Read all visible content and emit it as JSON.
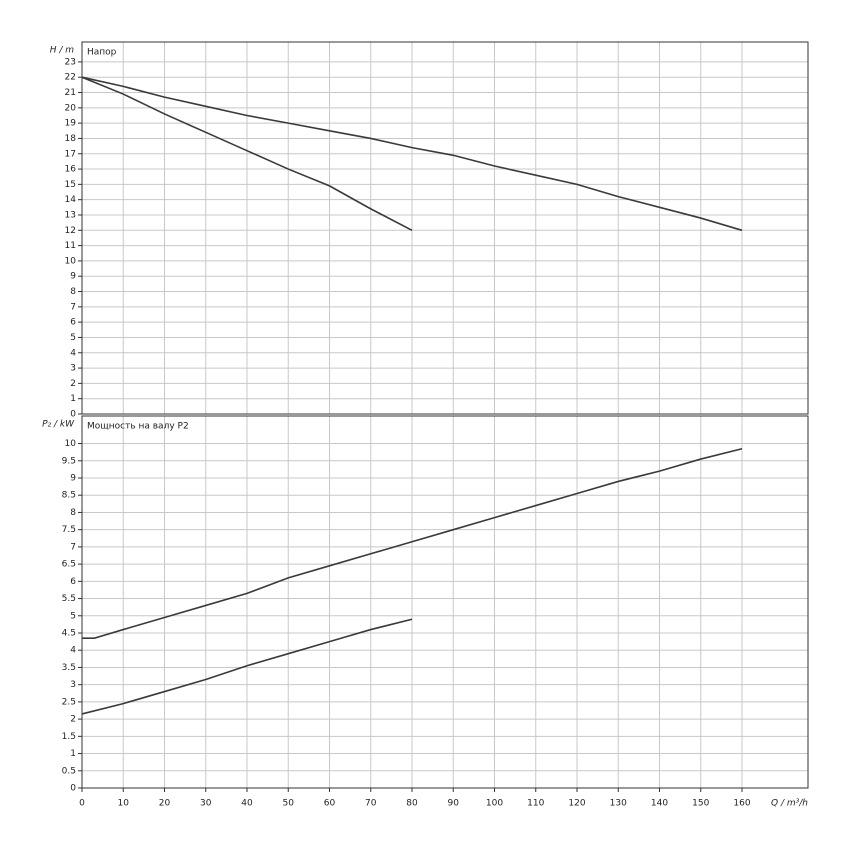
{
  "chart_data": [
    {
      "type": "line",
      "title": "Напор",
      "y_label": "H / m",
      "ylim": [
        0,
        24.3
      ],
      "yticks": [
        0,
        1,
        2,
        3,
        4,
        5,
        6,
        7,
        8,
        9,
        10,
        11,
        12,
        13,
        14,
        15,
        16,
        17,
        18,
        19,
        20,
        21,
        22,
        23
      ],
      "grid": true,
      "series": [
        {
          "color": "#3a3a3a",
          "x": [
            0,
            10,
            20,
            30,
            40,
            50,
            60,
            70,
            80
          ],
          "values": [
            22,
            20.9,
            19.6,
            18.4,
            17.2,
            16.0,
            14.9,
            13.4,
            12.0
          ]
        },
        {
          "color": "#3a3a3a",
          "x": [
            0,
            10,
            20,
            30,
            40,
            50,
            60,
            70,
            80,
            90,
            100,
            110,
            120,
            130,
            140,
            150,
            160
          ],
          "values": [
            22,
            21.4,
            20.7,
            20.1,
            19.5,
            19.0,
            18.5,
            18.0,
            17.4,
            16.9,
            16.2,
            15.6,
            15.0,
            14.2,
            13.5,
            12.8,
            12.0
          ]
        }
      ]
    },
    {
      "type": "line",
      "title": "Мощность на валу P2",
      "y_label": "P₂ / kW",
      "x_label": "Q / m³/h",
      "xlim": [
        0,
        176
      ],
      "xticks": [
        0,
        10,
        20,
        30,
        40,
        50,
        60,
        70,
        80,
        90,
        100,
        110,
        120,
        130,
        140,
        150,
        160
      ],
      "ylim": [
        0,
        10.8
      ],
      "yticks": [
        0,
        0.5,
        1,
        1.5,
        2,
        2.5,
        3,
        3.5,
        4,
        4.5,
        5,
        5.5,
        6,
        6.5,
        7,
        7.5,
        8,
        8.5,
        9,
        9.5,
        10
      ],
      "grid": true,
      "series": [
        {
          "color": "#3a3a3a",
          "x": [
            0,
            10,
            20,
            30,
            40,
            50,
            60,
            70,
            80
          ],
          "values": [
            2.15,
            2.45,
            2.8,
            3.15,
            3.55,
            3.9,
            4.25,
            4.6,
            4.9
          ]
        },
        {
          "color": "#3a3a3a",
          "x": [
            0,
            3,
            10,
            20,
            30,
            40,
            50,
            60,
            70,
            80,
            90,
            100,
            110,
            120,
            130,
            140,
            150,
            160
          ],
          "values": [
            4.35,
            4.35,
            4.6,
            4.95,
            5.3,
            5.65,
            6.1,
            6.45,
            6.8,
            7.15,
            7.5,
            7.85,
            8.2,
            8.55,
            8.9,
            9.2,
            9.55,
            9.85
          ]
        }
      ]
    }
  ]
}
